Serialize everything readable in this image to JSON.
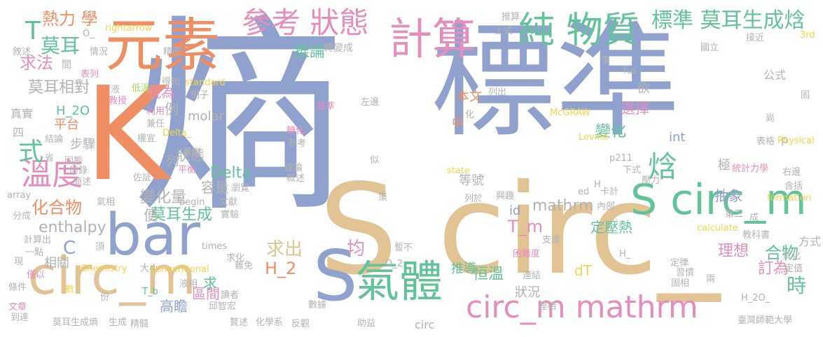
{
  "palette": {
    "blue": "#8fa1cc",
    "tan": "#e2c494",
    "orange": "#f08e63",
    "pink": "#e48ebf",
    "green": "#62c39b",
    "yellow": "#f2d64d",
    "lime": "#a9d65b",
    "gray": "#b3b3b3"
  },
  "words": [
    {
      "text": "熵",
      "color": "blue"
    },
    {
      "text": "標準",
      "color": "blue"
    },
    {
      "text": "K",
      "color": "orange"
    },
    {
      "text": "S circ_",
      "color": "tan"
    },
    {
      "text": "元素",
      "color": "orange"
    },
    {
      "text": "bar",
      "color": "blue"
    },
    {
      "text": "circ_m",
      "color": "tan"
    },
    {
      "text": "S",
      "color": "blue"
    },
    {
      "text": "計算",
      "color": "pink"
    },
    {
      "text": "純 物質",
      "color": "green"
    },
    {
      "text": "S circ_m",
      "color": "green"
    },
    {
      "text": "氣體",
      "color": "green"
    },
    {
      "text": "circ_m mathrm",
      "color": "pink"
    },
    {
      "text": "參考 狀態",
      "color": "pink"
    },
    {
      "text": "標準 莫耳生成焓",
      "color": "green"
    },
    {
      "text": "溫度",
      "color": "pink"
    },
    {
      "text": "式",
      "color": "green"
    },
    {
      "text": "焓",
      "color": "green"
    },
    {
      "text": "T",
      "color": "green"
    },
    {
      "text": "莫耳",
      "color": "green"
    },
    {
      "text": "熱力 學",
      "color": "orange"
    },
    {
      "text": "求法",
      "color": "pink"
    },
    {
      "text": "推論",
      "color": "green"
    },
    {
      "text": "莫耳相對",
      "color": "gray"
    },
    {
      "text": "mathrm",
      "color": "gray"
    },
    {
      "text": "T_m",
      "color": "pink"
    },
    {
      "text": "化合物",
      "color": "orange"
    },
    {
      "text": "莫耳生成",
      "color": "green"
    },
    {
      "text": "變化量",
      "color": "gray"
    },
    {
      "text": "enthalpy",
      "color": "gray"
    },
    {
      "text": "C",
      "color": "blue"
    },
    {
      "text": "均",
      "color": "pink"
    },
    {
      "text": "恒溫",
      "color": "green"
    },
    {
      "text": "合物",
      "color": "green"
    },
    {
      "text": "H_2",
      "color": "orange"
    },
    {
      "text": "求出",
      "color": "tan"
    },
    {
      "text": "理想",
      "color": "pink"
    },
    {
      "text": "訂為",
      "color": "pink"
    },
    {
      "text": "時",
      "color": "green"
    },
    {
      "text": "高瞻",
      "color": "blue"
    },
    {
      "text": "區間",
      "color": "pink"
    },
    {
      "text": "Delta",
      "color": "green"
    },
    {
      "text": "容量",
      "color": "gray"
    },
    {
      "text": "狀態",
      "color": "gray"
    },
    {
      "text": "變化",
      "color": "green"
    },
    {
      "text": "H_2O",
      "color": "green"
    },
    {
      "text": "平台",
      "color": "orange"
    },
    {
      "text": "視為",
      "color": "pink"
    },
    {
      "text": "選擇",
      "color": "pink"
    },
    {
      "text": "定壓熱",
      "color": "green"
    },
    {
      "text": "推導",
      "color": "green"
    },
    {
      "text": "抽象",
      "color": "blue"
    },
    {
      "text": "等號",
      "color": "gray"
    },
    {
      "text": "dT",
      "color": "yellow"
    },
    {
      "text": "id",
      "color": "blue"
    },
    {
      "text": "int",
      "color": "blue"
    },
    {
      "text": "p",
      "color": "gray"
    },
    {
      "text": "本文",
      "color": "orange"
    },
    {
      "text": "中",
      "color": "orange"
    },
    {
      "text": "欲",
      "color": "gray"
    },
    {
      "text": "極",
      "color": "gray"
    },
    {
      "text": "步驟",
      "color": "gray"
    },
    {
      "text": "例",
      "color": "gray"
    },
    {
      "text": "列",
      "color": "gray"
    },
    {
      "text": "便",
      "color": "gray"
    },
    {
      "text": "求",
      "color": "green"
    },
    {
      "text": "狀況",
      "color": "gray"
    },
    {
      "text": "方式",
      "color": "gray"
    },
    {
      "text": "公式",
      "color": "gray"
    },
    {
      "text": "真實",
      "color": "gray"
    },
    {
      "text": "四",
      "color": "gray"
    },
    {
      "text": "相關",
      "color": "gray"
    },
    {
      "text": "molar",
      "color": "gray"
    },
    {
      "text": "circ",
      "color": "gray"
    },
    {
      "text": "轉變成",
      "color": "gray"
    },
    {
      "text": "情況",
      "color": "gray"
    },
    {
      "text": "敘述",
      "color": "gray"
    },
    {
      "text": "間",
      "color": "gray"
    },
    {
      "text": "表列",
      "color": "pink"
    },
    {
      "text": "精密",
      "color": "gray"
    },
    {
      "text": "rightarrow",
      "color": "yellow"
    },
    {
      "text": "O_",
      "color": "gray"
    },
    {
      "text": "液",
      "color": "gray"
    },
    {
      "text": "低溫",
      "color": "lime"
    },
    {
      "text": "得知",
      "color": "gray"
    },
    {
      "text": "standard",
      "color": "yellow"
    },
    {
      "text": "例子",
      "color": "gray"
    },
    {
      "text": "教授",
      "color": "pink"
    },
    {
      "text": "利用",
      "color": "pink"
    },
    {
      "text": "兼任",
      "color": "gray"
    },
    {
      "text": "Delta_",
      "color": "yellow"
    },
    {
      "text": "權宜",
      "color": "gray"
    },
    {
      "text": "量測",
      "color": "gray"
    },
    {
      "text": "結論",
      "color": "gray"
    },
    {
      "text": "固態",
      "color": "gray"
    },
    {
      "text": "省",
      "color": "gray"
    },
    {
      "text": "附錄",
      "color": "gray"
    },
    {
      "text": "簡述",
      "color": "gray"
    },
    {
      "text": "佐証",
      "color": "gray"
    },
    {
      "text": "平衡",
      "color": "pink"
    },
    {
      "text": "文獻",
      "color": "gray"
    },
    {
      "text": "瀏覽",
      "color": "gray"
    },
    {
      "text": "array",
      "color": "gray"
    },
    {
      "text": "分成",
      "color": "gray"
    },
    {
      "text": "氣相",
      "color": "gray"
    },
    {
      "text": "begin",
      "color": "gray"
    },
    {
      "text": "實驗",
      "color": "gray"
    },
    {
      "text": "計算出",
      "color": "gray"
    },
    {
      "text": "一點",
      "color": "gray"
    },
    {
      "text": "現",
      "color": "gray"
    },
    {
      "text": "僅以",
      "color": "pink"
    },
    {
      "text": "條件",
      "color": "gray"
    },
    {
      "text": "數",
      "color": "yellow"
    },
    {
      "text": "文章",
      "color": "pink"
    },
    {
      "text": "到達",
      "color": "gray"
    },
    {
      "text": "須",
      "color": "gray"
    },
    {
      "text": "Chemistry",
      "color": "yellow"
    },
    {
      "text": "大小",
      "color": "gray"
    },
    {
      "text": "conventional",
      "color": "yellow"
    },
    {
      "text": "times",
      "color": "gray"
    },
    {
      "text": "求化",
      "color": "gray"
    },
    {
      "text": "難免",
      "color": "gray"
    },
    {
      "text": "T_b",
      "color": "green"
    },
    {
      "text": "液相",
      "color": "gray"
    },
    {
      "text": "讀者",
      "color": "gray"
    },
    {
      "text": "份",
      "color": "gray"
    },
    {
      "text": "邱智宏",
      "color": "gray"
    },
    {
      "text": "莫耳生成熵",
      "color": "gray"
    },
    {
      "text": "生成",
      "color": "gray"
    },
    {
      "text": "精髓",
      "color": "gray"
    },
    {
      "text": "贅述",
      "color": "gray"
    },
    {
      "text": "化學系",
      "color": "gray"
    },
    {
      "text": "反觀",
      "color": "gray"
    },
    {
      "text": "數據",
      "color": "gray"
    },
    {
      "text": "助益",
      "color": "gray"
    },
    {
      "text": "臺灣師範大學",
      "color": "gray"
    },
    {
      "text": "H_2O_",
      "color": "gray"
    },
    {
      "text": "推算",
      "color": "gray"
    },
    {
      "text": "上式",
      "color": "gray"
    },
    {
      "text": "接近",
      "color": "gray"
    },
    {
      "text": "3rd",
      "color": "yellow"
    },
    {
      "text": "國立",
      "color": "gray"
    },
    {
      "text": "事",
      "color": "gray"
    },
    {
      "text": "fus",
      "color": "gray"
    },
    {
      "text": "列出",
      "color": "gray"
    },
    {
      "text": "左邊",
      "color": "gray"
    },
    {
      "text": "McGRAW",
      "color": "yellow"
    },
    {
      "text": "Levine",
      "color": "yellow"
    },
    {
      "text": "p211",
      "color": "gray"
    },
    {
      "text": "下式",
      "color": "gray"
    },
    {
      "text": "表格",
      "color": "gray"
    },
    {
      "text": "Physical",
      "color": "yellow"
    },
    {
      "text": "尚",
      "color": "gray"
    },
    {
      "text": "固",
      "color": "gray"
    },
    {
      "text": "統計力學",
      "color": "pink"
    },
    {
      "text": "右邊",
      "color": "gray"
    },
    {
      "text": "含括",
      "color": "gray"
    },
    {
      "text": "formation",
      "color": "yellow"
    },
    {
      "text": "第三",
      "color": "gray"
    },
    {
      "text": "成",
      "color": "gray"
    },
    {
      "text": "calculate",
      "color": "yellow"
    },
    {
      "text": "教科書",
      "color": "gray"
    },
    {
      "text": "質化",
      "color": "gray"
    },
    {
      "text": "定值",
      "color": "gray"
    },
    {
      "text": "兩",
      "color": "gray"
    },
    {
      "text": "定律",
      "color": "gray"
    },
    {
      "text": "習慣",
      "color": "gray"
    },
    {
      "text": "固相",
      "color": "gray"
    },
    {
      "text": "壓力",
      "color": "gray"
    },
    {
      "text": "卡計",
      "color": "gray"
    },
    {
      "text": "興趣",
      "color": "gray"
    },
    {
      "text": "列於",
      "color": "gray"
    },
    {
      "text": "內部",
      "color": "gray"
    },
    {
      "text": "支援",
      "color": "gray"
    },
    {
      "text": "困難度",
      "color": "pink"
    },
    {
      "text": "連結",
      "color": "gray"
    },
    {
      "text": "理相",
      "color": "gray"
    },
    {
      "text": "H_",
      "color": "gray"
    },
    {
      "text": "O_2",
      "color": "gray"
    },
    {
      "text": "暫不",
      "color": "gray"
    },
    {
      "text": "理論",
      "color": "gray"
    },
    {
      "text": "概述",
      "color": "gray"
    },
    {
      "text": "轉化",
      "color": "pink"
    },
    {
      "text": "參考",
      "color": "gray"
    },
    {
      "text": "似",
      "color": "gray"
    },
    {
      "text": "策",
      "color": "gray"
    },
    {
      "text": "state",
      "color": "yellow"
    },
    {
      "text": "ed",
      "color": "gray"
    },
    {
      "text": "H",
      "color": "gray"
    },
    {
      "text": "基準",
      "color": "pink"
    },
    {
      "text": "化",
      "color": "gray"
    }
  ]
}
